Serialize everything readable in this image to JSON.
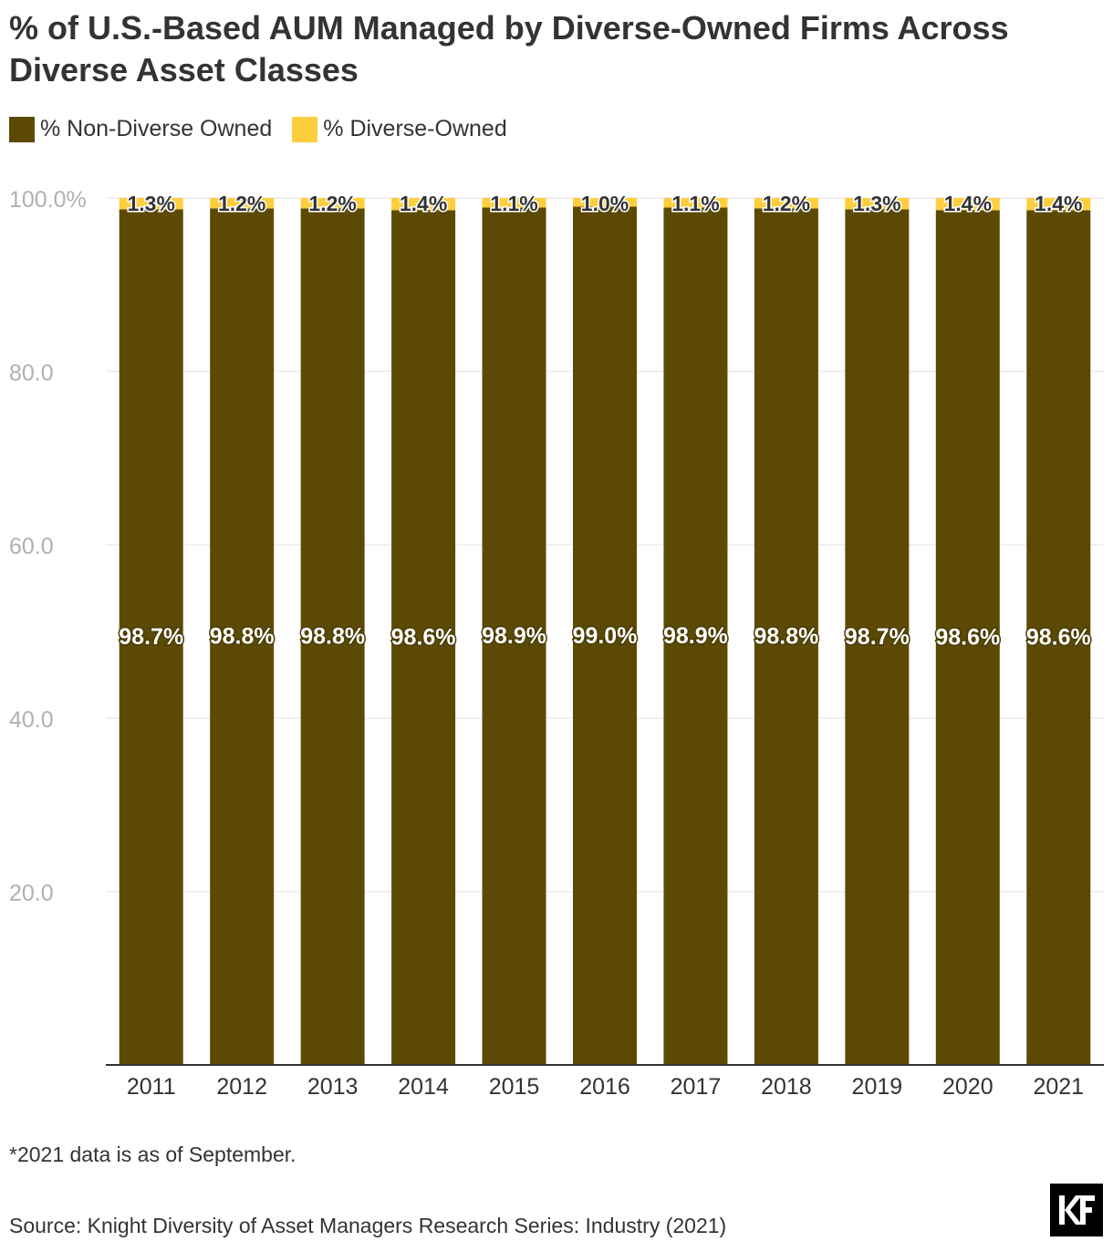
{
  "title": "% of U.S.-Based AUM Managed by Diverse-Owned Firms Across Diverse Asset Classes",
  "note": "*2021 data is as of September.",
  "source": "Source: Knight Diversity of Asset Managers Research Series: Industry (2021)",
  "logo_icon": "kf-logo",
  "colors": {
    "non_diverse": "#5c4a04",
    "diverse": "#fdce3d",
    "axis_text": "#b0b0b0",
    "grid": "#e0e0e0",
    "text": "#333333"
  },
  "chart_data": {
    "type": "bar",
    "stacked": true,
    "title": "% of U.S.-Based AUM Managed by Diverse-Owned Firms Across Diverse Asset Classes",
    "categories": [
      "2011",
      "2012",
      "2013",
      "2014",
      "2015",
      "2016",
      "2017",
      "2018",
      "2019",
      "2020",
      "2021"
    ],
    "series": [
      {
        "name": "% Non-Diverse Owned",
        "values": [
          98.7,
          98.8,
          98.8,
          98.6,
          98.9,
          99.0,
          98.9,
          98.8,
          98.7,
          98.6,
          98.6
        ],
        "labels": [
          "98.7%",
          "98.8%",
          "98.8%",
          "98.6%",
          "98.9%",
          "99.0%",
          "98.9%",
          "98.8%",
          "98.7%",
          "98.6%",
          "98.6%"
        ]
      },
      {
        "name": "% Diverse-Owned",
        "values": [
          1.3,
          1.2,
          1.2,
          1.4,
          1.1,
          1.0,
          1.1,
          1.2,
          1.3,
          1.4,
          1.4
        ],
        "labels": [
          "1.3%",
          "1.2%",
          "1.2%",
          "1.4%",
          "1.1%",
          "1.0%",
          "1.1%",
          "1.2%",
          "1.3%",
          "1.4%",
          "1.4%"
        ]
      }
    ],
    "ylim": [
      0,
      100
    ],
    "yticks": [
      20,
      40,
      60,
      80,
      100
    ],
    "ytick_labels": [
      "20.0",
      "40.0",
      "60.0",
      "80.0",
      "100.0%"
    ],
    "grid": true,
    "legend_position": "top-left",
    "xlabel": "",
    "ylabel": ""
  }
}
